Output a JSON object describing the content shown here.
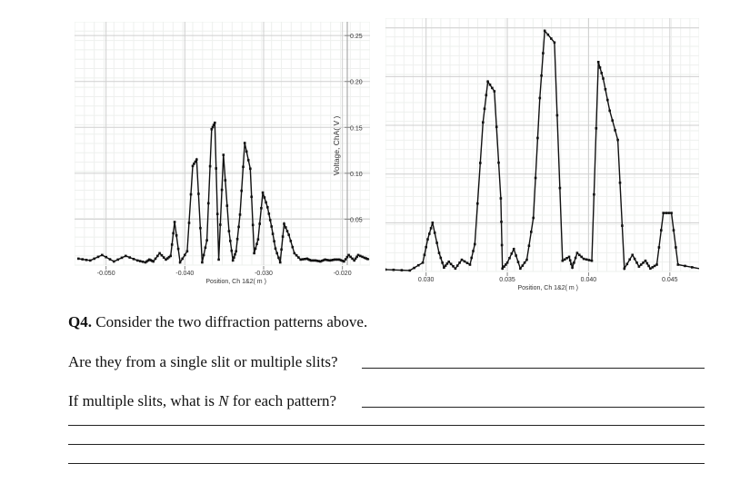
{
  "charts": {
    "left": {
      "tick_labels_x": [
        "-0.050",
        "-0.040",
        "-0.030",
        "-0.020"
      ],
      "tick_labels_y": [
        "0.25",
        "0.20",
        "0.15",
        "0.10",
        "0.05"
      ],
      "xlabel": "Position, Ch 1&2( m )",
      "ylabel": "Voltage, ChA( V )"
    },
    "right": {
      "tick_labels_x": [
        "0.030",
        "0.035",
        "0.040",
        "0.045"
      ],
      "xlabel": "Position, Ch 1&2( m )"
    }
  },
  "chart_data": [
    {
      "type": "line",
      "xlabel": "Position, Ch 1&2( m )",
      "ylabel": "Voltage, ChA( V )",
      "xlim": [
        -0.054,
        -0.0165
      ],
      "ylim": [
        0.0,
        0.265
      ],
      "x_ticks": [
        -0.05,
        -0.04,
        -0.03,
        -0.02
      ],
      "y_ticks": [
        0.25,
        0.2,
        0.15,
        0.1,
        0.05
      ],
      "grid": true,
      "series": [
        {
          "x": [
            -0.0535,
            -0.052,
            -0.0505,
            -0.049,
            -0.0475,
            -0.046,
            -0.045,
            -0.0445,
            -0.044,
            -0.0432,
            -0.0424,
            -0.0418,
            -0.0413,
            -0.0406,
            -0.0397,
            -0.039,
            -0.0385,
            -0.0378,
            -0.0372,
            -0.0366,
            -0.0362,
            -0.0357,
            -0.0351,
            -0.0344,
            -0.0339,
            -0.0335,
            -0.033,
            -0.0324,
            -0.0317,
            -0.0312,
            -0.0307,
            -0.0301,
            -0.0295,
            -0.029,
            -0.0285,
            -0.0279,
            -0.0274,
            -0.0268,
            -0.0261,
            -0.0253,
            -0.0245,
            -0.024,
            -0.0234,
            -0.0228,
            -0.0222,
            -0.0216,
            -0.021,
            -0.0204,
            -0.0198,
            -0.0192,
            -0.0185,
            -0.018,
            -0.0172,
            -0.0166
          ],
          "y": [
            0.007,
            0.005,
            0.011,
            0.004,
            0.01,
            0.005,
            0.003,
            0.006,
            0.004,
            0.013,
            0.006,
            0.01,
            0.047,
            0.003,
            0.015,
            0.108,
            0.115,
            0.003,
            0.027,
            0.148,
            0.155,
            0.006,
            0.12,
            0.037,
            0.005,
            0.015,
            0.055,
            0.133,
            0.105,
            0.013,
            0.028,
            0.079,
            0.063,
            0.042,
            0.018,
            0.003,
            0.045,
            0.033,
            0.013,
            0.006,
            0.007,
            0.005,
            0.005,
            0.004,
            0.006,
            0.005,
            0.006,
            0.006,
            0.004,
            0.011,
            0.005,
            0.011,
            0.008,
            0.006
          ]
        }
      ]
    },
    {
      "type": "line",
      "xlabel": "Position, Ch 1&2( m )",
      "xlim": [
        0.0275,
        0.0468
      ],
      "ylim": [
        0.0,
        0.26
      ],
      "x_ticks": [
        0.03,
        0.035,
        0.04,
        0.045
      ],
      "grid": true,
      "series": [
        {
          "x": [
            0.0275,
            0.029,
            0.0298,
            0.0301,
            0.0304,
            0.0308,
            0.0311,
            0.0314,
            0.0318,
            0.0322,
            0.0327,
            0.033,
            0.0335,
            0.0338,
            0.0342,
            0.0346,
            0.0347,
            0.035,
            0.0354,
            0.0358,
            0.0362,
            0.0366,
            0.037,
            0.0373,
            0.0379,
            0.0384,
            0.0388,
            0.039,
            0.0393,
            0.0397,
            0.0402,
            0.0406,
            0.0409,
            0.0413,
            0.0418,
            0.0422,
            0.0427,
            0.0431,
            0.0435,
            0.0438,
            0.0442,
            0.0446,
            0.0451,
            0.0455,
            0.0468
          ],
          "y": [
            0.002,
            0.001,
            0.009,
            0.033,
            0.05,
            0.019,
            0.004,
            0.01,
            0.003,
            0.012,
            0.007,
            0.028,
            0.153,
            0.195,
            0.185,
            0.075,
            0.003,
            0.009,
            0.023,
            0.003,
            0.012,
            0.055,
            0.178,
            0.247,
            0.235,
            0.011,
            0.015,
            0.004,
            0.019,
            0.013,
            0.011,
            0.215,
            0.198,
            0.165,
            0.135,
            0.003,
            0.017,
            0.005,
            0.011,
            0.003,
            0.007,
            0.06,
            0.06,
            0.007,
            0.003
          ]
        }
      ]
    }
  ],
  "question": {
    "number": "Q4.",
    "prompt": "Consider the two diffraction patterns above.",
    "q1": "Are they from a single slit or multiple slits?",
    "q2_prefix": "If multiple slits, what is ",
    "q2_var": "N",
    "q2_suffix": " for each pattern?"
  }
}
